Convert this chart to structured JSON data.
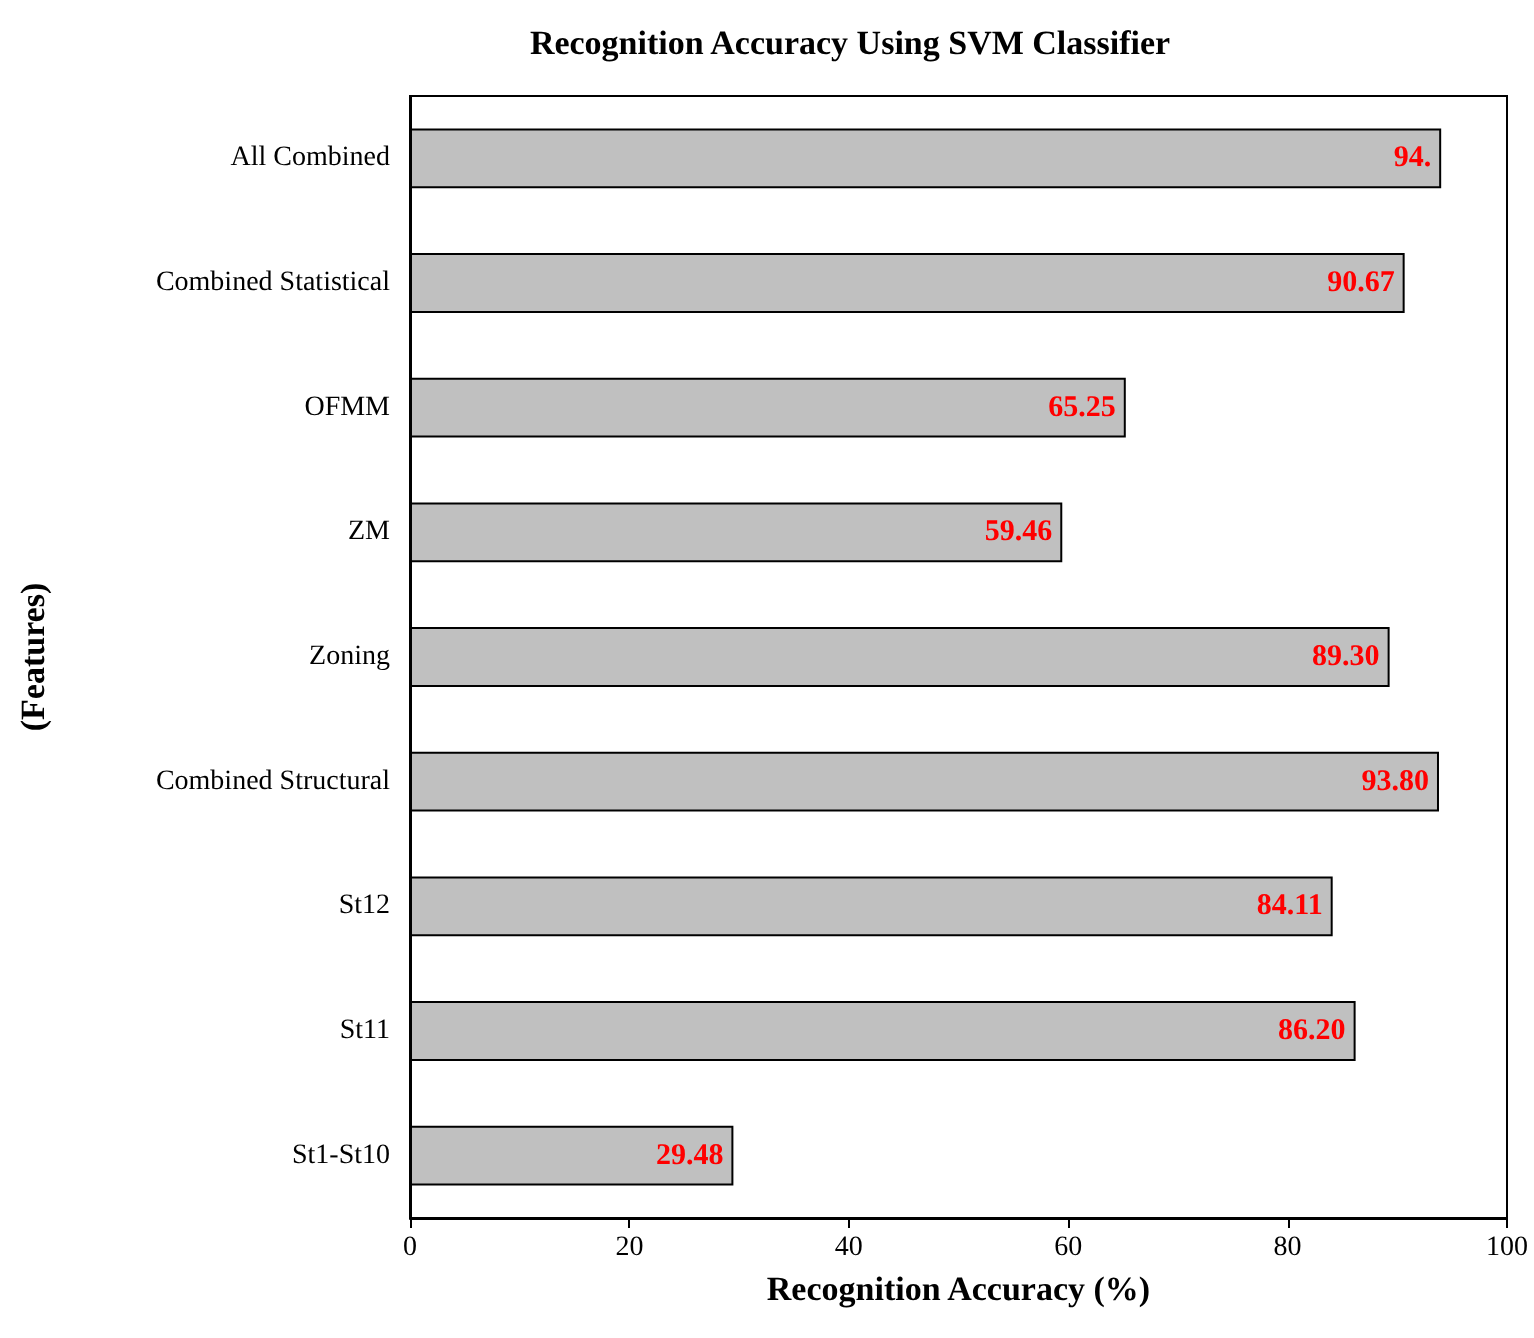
{
  "chart_data": {
    "type": "bar",
    "orientation": "horizontal",
    "title": "Recognition Accuracy Using SVM Classifier",
    "xlabel": "Recognition Accuracy (%)",
    "ylabel": "(Features)",
    "categories": [
      "All Combined",
      "Combined Statistical",
      "OFMM",
      "ZM",
      "Zoning",
      "Combined Structural",
      "St12",
      "St11",
      "St1-St10"
    ],
    "values": [
      94,
      90.67,
      65.25,
      59.46,
      89.3,
      93.8,
      84.11,
      86.2,
      29.48
    ],
    "value_labels": [
      "94.",
      "90.67",
      "65.25",
      "59.46",
      "89.30",
      "93.80",
      "84.11",
      "86.20",
      "29.48"
    ],
    "color": "#c0c0c0",
    "xlim": [
      0,
      100
    ],
    "xticks": [
      0,
      20,
      40,
      60,
      80,
      100
    ]
  }
}
